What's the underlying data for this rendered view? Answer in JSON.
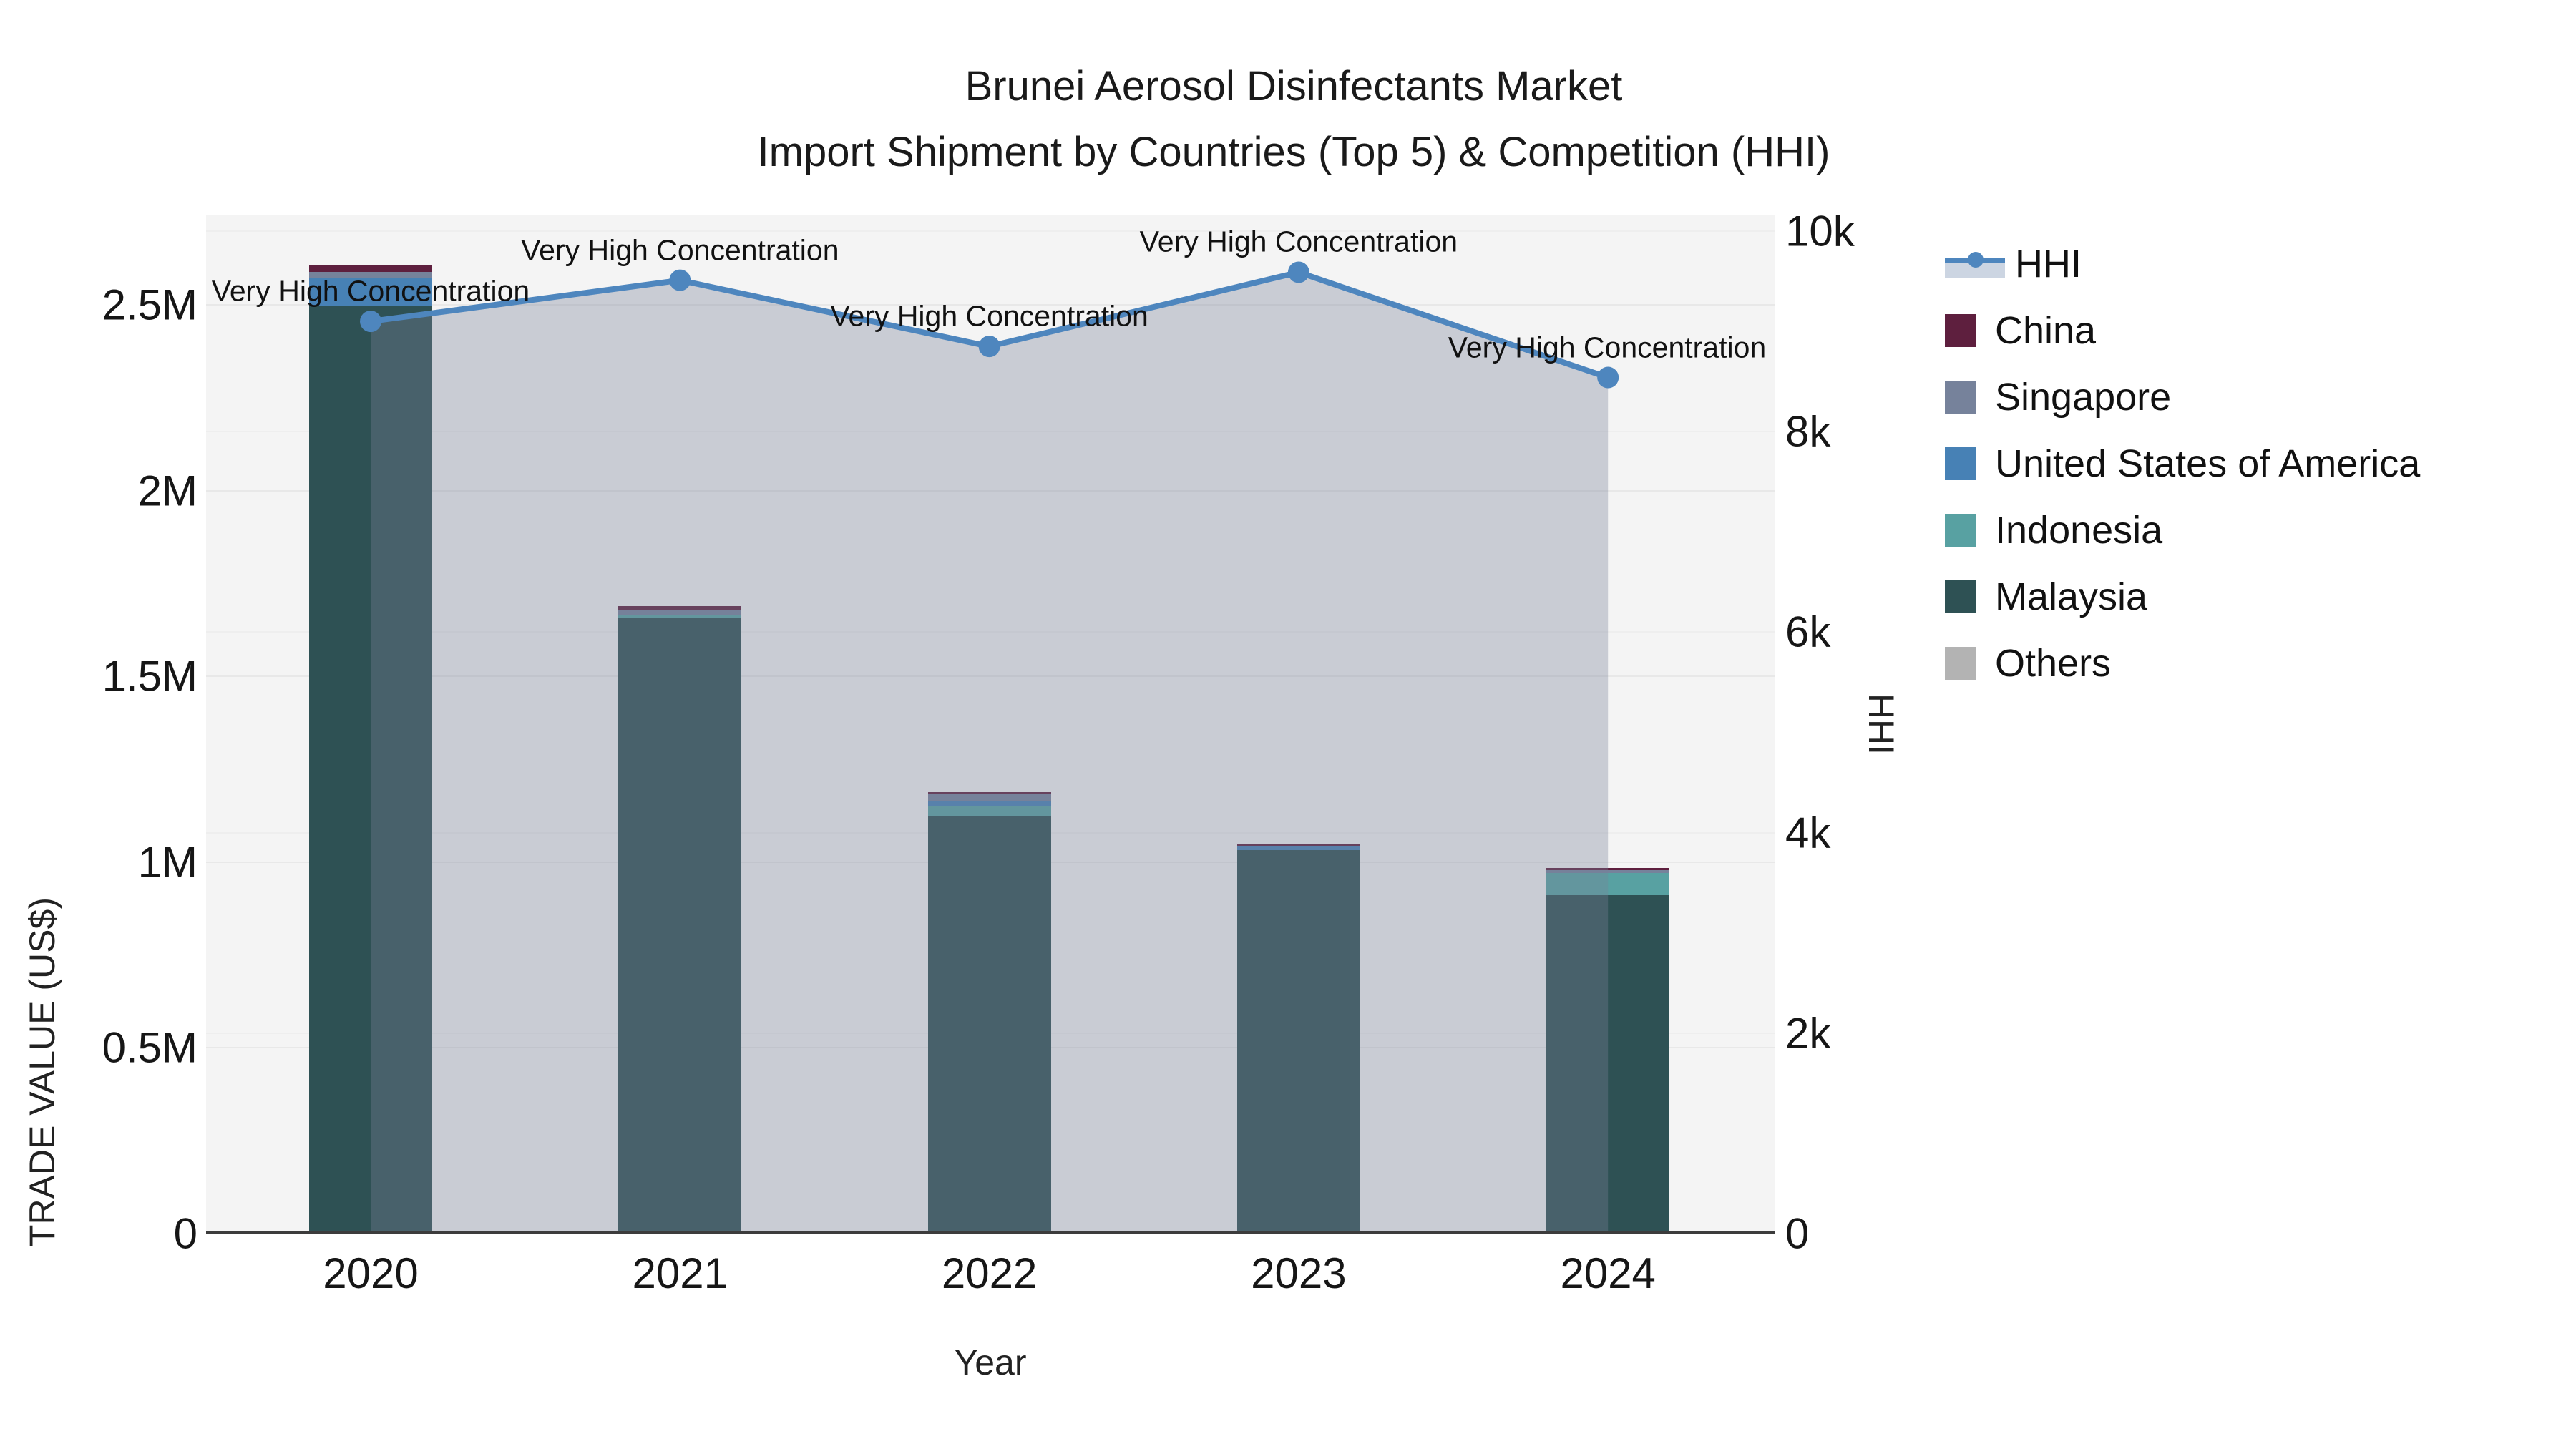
{
  "chart_data": {
    "type": "bar",
    "title": "Brunei Aerosol Disinfectants Market",
    "subtitle": "Import Shipment by Countries (Top 5) & Competition (HHI)",
    "xlabel": "Year",
    "ylabel_left": "TRADE VALUE (US$)",
    "ylabel_right": "HHI",
    "categories": [
      "2020",
      "2021",
      "2022",
      "2023",
      "2024"
    ],
    "left_axis": {
      "tick_labels": [
        "0",
        "0.5M",
        "1M",
        "1.5M",
        "2M",
        "2.5M"
      ],
      "tick_values": [
        0,
        500000,
        1000000,
        1500000,
        2000000,
        2500000
      ],
      "max": 2500000
    },
    "right_axis": {
      "tick_labels": [
        "0",
        "2k",
        "4k",
        "6k",
        "8k",
        "10k"
      ],
      "tick_values": [
        0,
        2000,
        4000,
        6000,
        8000,
        10000
      ],
      "max": 10000
    },
    "series": [
      {
        "name": "Malaysia",
        "color": "#2E5154",
        "values": [
          2496000,
          1658000,
          1123000,
          1032000,
          911000
        ]
      },
      {
        "name": "Indonesia",
        "color": "#58A1A2",
        "values": [
          0,
          8000,
          27000,
          0,
          60000
        ]
      },
      {
        "name": "United States of America",
        "color": "#4781B5",
        "values": [
          75000,
          0,
          13000,
          12000,
          0
        ]
      },
      {
        "name": "Singapore",
        "color": "#76829B",
        "values": [
          17000,
          12000,
          21000,
          0,
          8000
        ]
      },
      {
        "name": "China",
        "color": "#5E1F3E",
        "values": [
          17000,
          12000,
          4000,
          4000,
          6000
        ]
      },
      {
        "name": "Others",
        "color": "#B3B3B3",
        "values": [
          0,
          0,
          0,
          0,
          0
        ]
      }
    ],
    "hhi_line": {
      "name": "HHI",
      "line_color": "#4E86BE",
      "fill_color": "rgba(121,130,153,0.35)",
      "values": [
        9100,
        9510,
        8850,
        9590,
        8540
      ],
      "annotations": [
        "Very High Concentration",
        "Very High Concentration",
        "Very High Concentration",
        "Very High Concentration",
        "Very High Concentration"
      ]
    },
    "legend_position": "right",
    "grid": true
  },
  "legend": {
    "items": [
      {
        "label": "HHI",
        "type": "line",
        "color": "#4E86BE"
      },
      {
        "label": "China",
        "type": "box",
        "color": "#5E1F3E"
      },
      {
        "label": "Singapore",
        "type": "box",
        "color": "#76829B"
      },
      {
        "label": "United States of America",
        "type": "box",
        "color": "#4781B5"
      },
      {
        "label": "Indonesia",
        "type": "box",
        "color": "#58A1A2"
      },
      {
        "label": "Malaysia",
        "type": "box",
        "color": "#2E5154"
      },
      {
        "label": "Others",
        "type": "box",
        "color": "#B3B3B3"
      }
    ]
  },
  "colors": {
    "page_background": "#ffffff",
    "plot_background": "#f4f4f4",
    "gridline": "#e8e8e8",
    "axis_line": "#3c3c3c",
    "text": "#111111"
  }
}
